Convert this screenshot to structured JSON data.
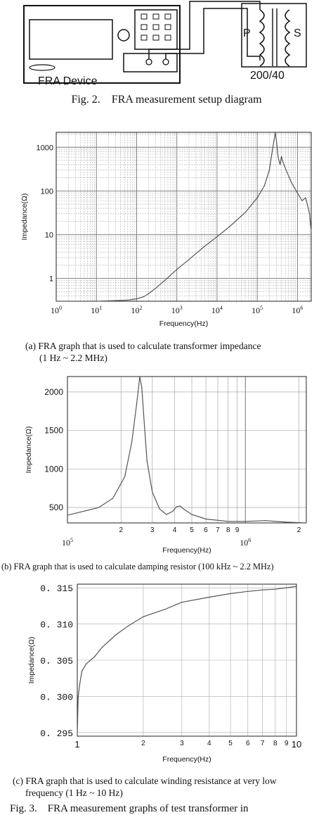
{
  "setup": {
    "device_label": "FRA Device",
    "winding_p": "P",
    "winding_s": "S",
    "ratio": "200/40",
    "caption": "Fig. 2.    FRA measurement setup diagram"
  },
  "captions": {
    "a_line1": "(a) FRA graph that is used to calculate transformer impedance",
    "a_line2": "(1 Hz ~ 2.2 MHz)",
    "b": "(b) FRA graph that is used to calculate damping resistor (100 kHz ~ 2.2 MHz)",
    "c_line1": "(c) FRA graph that is used to calculate winding resistance at very low",
    "c_line2": "frequency (1 Hz ~ 10 Hz)",
    "fig3": "Fig. 3.    FRA measurement graphs of test transformer in"
  },
  "chart_data": [
    {
      "type": "line",
      "id": "a",
      "xlabel": "Frequency(Hz)",
      "ylabel": "Impedance(Ω)",
      "x_scale": "log",
      "y_scale": "log",
      "xlim": [
        1,
        2200000
      ],
      "ylim": [
        0.3,
        2200
      ],
      "grid": true,
      "x_ticks": [
        {
          "v": 1,
          "e": "0"
        },
        {
          "v": 10,
          "e": "1"
        },
        {
          "v": 100,
          "e": "2"
        },
        {
          "v": 1000,
          "e": "3"
        },
        {
          "v": 10000,
          "e": "4"
        },
        {
          "v": 100000,
          "e": "5"
        },
        {
          "v": 1000000,
          "e": "6"
        }
      ],
      "y_ticks": [
        {
          "v": 1,
          "label": "1"
        },
        {
          "v": 10,
          "label": "10"
        },
        {
          "v": 100,
          "label": "100"
        },
        {
          "v": 1000,
          "label": "1000"
        }
      ],
      "x": [
        1,
        10,
        30,
        60,
        100,
        150,
        200,
        300,
        500,
        1000,
        2000,
        5000,
        10000,
        20000,
        50000,
        100000,
        150000,
        200000,
        230000,
        260000,
        280000,
        300000,
        330000,
        370000,
        400000,
        430000,
        500000,
        700000,
        1000000,
        1300000,
        1600000,
        2000000,
        2200000
      ],
      "y": [
        0.3,
        0.3,
        0.31,
        0.32,
        0.34,
        0.38,
        0.45,
        0.6,
        0.9,
        1.6,
        2.7,
        5.5,
        9,
        15,
        32,
        70,
        130,
        300,
        700,
        1400,
        2150,
        1400,
        600,
        400,
        620,
        480,
        330,
        160,
        90,
        60,
        70,
        30,
        12
      ]
    },
    {
      "type": "line",
      "id": "b",
      "xlabel": "Frequency(Hz)",
      "ylabel": "Impedance(Ω)",
      "x_scale": "log",
      "y_scale": "linear",
      "xlim": [
        100000,
        2200000
      ],
      "ylim": [
        300,
        2200
      ],
      "grid": true,
      "x_ticks": [
        {
          "v": 200000,
          "label": "2"
        },
        {
          "v": 300000,
          "label": "3"
        },
        {
          "v": 400000,
          "label": "4"
        },
        {
          "v": 500000,
          "label": "5"
        },
        {
          "v": 600000,
          "label": "6"
        },
        {
          "v": 700000,
          "label": "7"
        },
        {
          "v": 800000,
          "label": "8"
        },
        {
          "v": 900000,
          "label": "9"
        },
        {
          "v": 2000000,
          "label": "2"
        }
      ],
      "x_decade_labels": [
        {
          "v": 100000,
          "e": "5"
        },
        {
          "v": 1000000,
          "e": "6"
        }
      ],
      "y_ticks": [
        500,
        1000,
        1500,
        2000
      ],
      "x": [
        100000,
        150000,
        180000,
        210000,
        230000,
        245000,
        255000,
        262000,
        270000,
        280000,
        300000,
        330000,
        360000,
        390000,
        410000,
        430000,
        450000,
        500000,
        600000,
        800000,
        1000000,
        1300000,
        1700000,
        2200000
      ],
      "y": [
        400,
        500,
        620,
        900,
        1350,
        1850,
        2200,
        2050,
        1600,
        1100,
        700,
        480,
        410,
        450,
        510,
        520,
        480,
        410,
        350,
        320,
        320,
        330,
        310,
        300
      ]
    },
    {
      "type": "line",
      "id": "c",
      "xlabel": "Frequency(Hz)",
      "ylabel": "Impedance(Ω)",
      "x_scale": "log",
      "y_scale": "linear",
      "xlim": [
        1,
        10
      ],
      "ylim": [
        0.2945,
        0.3155
      ],
      "grid": true,
      "x_ticks": [
        {
          "v": 1,
          "label": "1"
        },
        {
          "v": 2,
          "label": "2"
        },
        {
          "v": 3,
          "label": "3"
        },
        {
          "v": 4,
          "label": "4"
        },
        {
          "v": 5,
          "label": "5"
        },
        {
          "v": 6,
          "label": "6"
        },
        {
          "v": 7,
          "label": "7"
        },
        {
          "v": 8,
          "label": "8"
        },
        {
          "v": 9,
          "label": "9"
        },
        {
          "v": 10,
          "label": "10"
        }
      ],
      "y_ticks": [
        {
          "v": 0.295,
          "label": "0. 295"
        },
        {
          "v": 0.3,
          "label": "0. 300"
        },
        {
          "v": 0.305,
          "label": "0. 305"
        },
        {
          "v": 0.31,
          "label": "0. 310"
        },
        {
          "v": 0.315,
          "label": "0. 315"
        }
      ],
      "x": [
        1,
        1.01,
        1.03,
        1.05,
        1.1,
        1.2,
        1.3,
        1.5,
        1.7,
        2,
        2.5,
        3,
        4,
        5,
        6,
        7,
        8,
        9,
        10
      ],
      "y": [
        0.2947,
        0.3,
        0.302,
        0.3035,
        0.3045,
        0.3055,
        0.3068,
        0.3085,
        0.3097,
        0.311,
        0.312,
        0.313,
        0.3137,
        0.3142,
        0.3145,
        0.3147,
        0.3148,
        0.315,
        0.3152
      ]
    }
  ]
}
